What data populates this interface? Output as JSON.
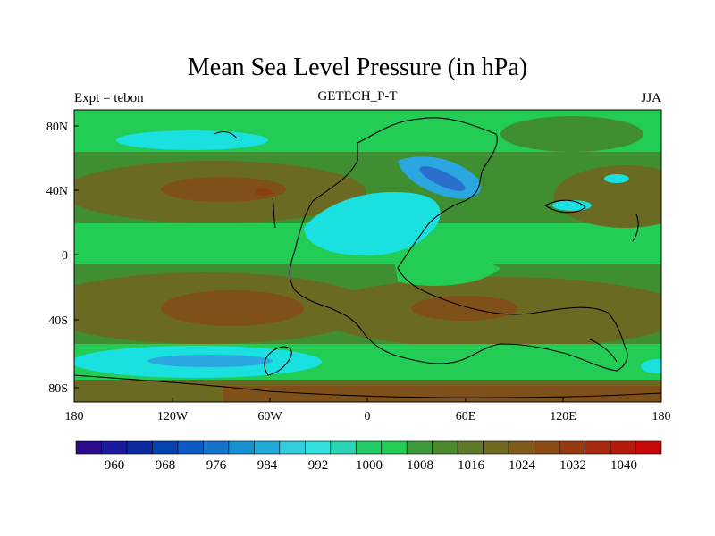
{
  "title": "Mean Sea Level Pressure (in hPa)",
  "subtitle_left": "Expt = tebon",
  "subtitle_center": "GETECH_P-T",
  "subtitle_right": "JJA",
  "lat_labels": [
    "80N",
    "40N",
    "0",
    "40S",
    "80S"
  ],
  "lon_labels": [
    "180",
    "120W",
    "60W",
    "0",
    "60E",
    "120E",
    "180"
  ],
  "colorbar_labels": [
    "960",
    "968",
    "976",
    "984",
    "992",
    "1000",
    "1008",
    "1016",
    "1024",
    "1032",
    "1040"
  ],
  "colorbar_colors": [
    "#2b0a8c",
    "#1a1a9e",
    "#0a2a9e",
    "#0044b0",
    "#0a5cc4",
    "#1574c8",
    "#1a90d4",
    "#20aadc",
    "#33ccdd",
    "#33e0e0",
    "#2ad5b5",
    "#22cc66",
    "#22cc55",
    "#3c9a3c",
    "#4d8a2c",
    "#5f7a26",
    "#6f6a1f",
    "#7f5a1a",
    "#8c4a14",
    "#993910",
    "#a5290c",
    "#b51a0a",
    "#c80808"
  ],
  "colors": {
    "green": "#22cc55",
    "darkgreen": "#3f8f32",
    "olive": "#6b6a22",
    "brown": "#80501a",
    "darkbrown": "#8c3e12",
    "cyan": "#1ae0e0",
    "lightblue": "#2aa6e0",
    "blue": "#2a6fcc"
  }
}
